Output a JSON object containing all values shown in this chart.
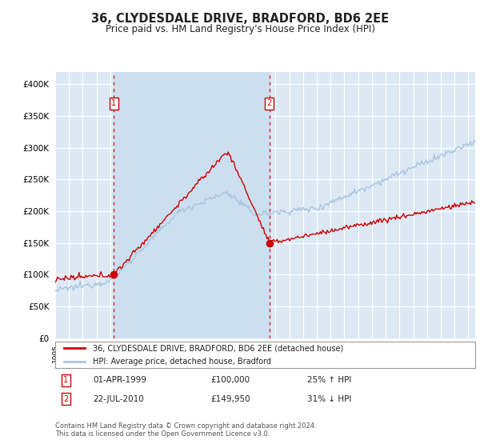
{
  "title": "36, CLYDESDALE DRIVE, BRADFORD, BD6 2EE",
  "subtitle": "Price paid vs. HM Land Registry's House Price Index (HPI)",
  "ylim": [
    0,
    420000
  ],
  "yticks": [
    0,
    50000,
    100000,
    150000,
    200000,
    250000,
    300000,
    350000,
    400000
  ],
  "ytick_labels": [
    "£0",
    "£50K",
    "£100K",
    "£150K",
    "£200K",
    "£250K",
    "£300K",
    "£350K",
    "£400K"
  ],
  "background_color": "#ffffff",
  "plot_bg_color": "#dce9f5",
  "grid_color": "#ffffff",
  "hpi_line_color": "#aac4e0",
  "price_line_color": "#cc0000",
  "sale1_date": "01-APR-1999",
  "sale1_price": 100000,
  "sale1_label": "25% ↑ HPI",
  "sale2_date": "22-JUL-2010",
  "sale2_price": 149950,
  "sale2_label": "31% ↓ HPI",
  "sale1_x": 1999.25,
  "sale2_x": 2010.55,
  "highlight_bg": "#ccdff0",
  "footnote": "Contains HM Land Registry data © Crown copyright and database right 2024.\nThis data is licensed under the Open Government Licence v3.0.",
  "legend_house_label": "36, CLYDESDALE DRIVE, BRADFORD, BD6 2EE (detached house)",
  "legend_hpi_label": "HPI: Average price, detached house, Bradford",
  "xlim_start": 1995,
  "xlim_end": 2025.5
}
